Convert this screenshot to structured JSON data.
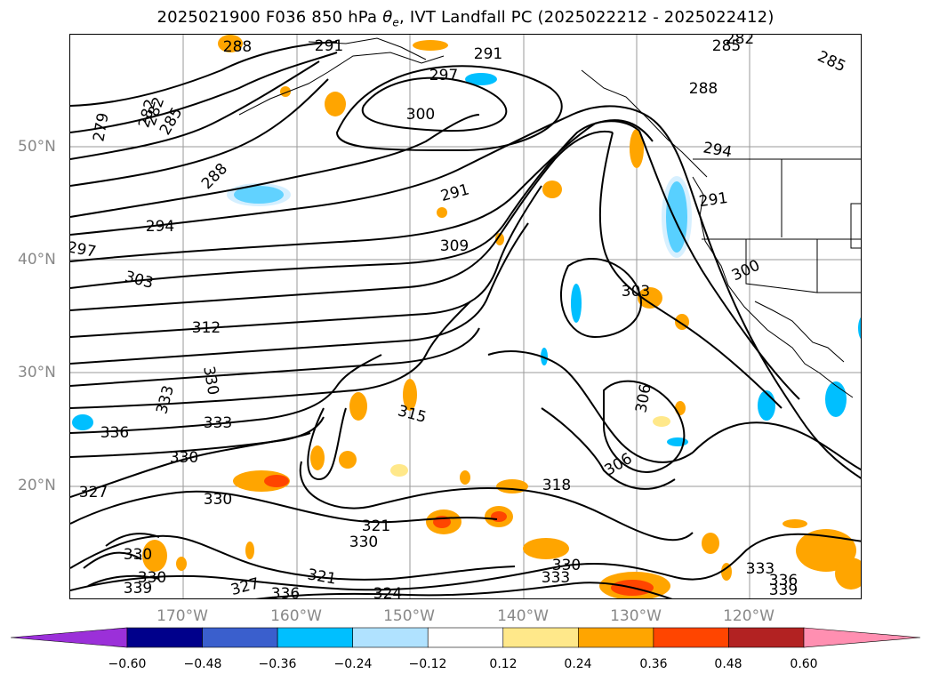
{
  "title": {
    "prefix": "2025021900 F036 850 hPa ",
    "symbol": "θ",
    "subscript": "e",
    "suffix": ", IVT Landfall PC (2025022212 - 2025022412)"
  },
  "latitude_labels": [
    "50°N",
    "40°N",
    "30°N",
    "20°N"
  ],
  "longitude_labels": [
    "170°W",
    "160°W",
    "150°W",
    "140°W",
    "130°W",
    "120°W"
  ],
  "contour_labels": [
    "288",
    "291",
    "291",
    "297",
    "300",
    "282",
    "279",
    "282",
    "285",
    "288",
    "288",
    "285",
    "294",
    "291",
    "294",
    "291",
    "297",
    "309",
    "303",
    "303",
    "300",
    "312",
    "330",
    "333",
    "336",
    "333",
    "330",
    "315",
    "306",
    "306",
    "318",
    "327",
    "330",
    "321",
    "330",
    "324",
    "321",
    "330",
    "330",
    "336",
    "339",
    "327",
    "330",
    "333",
    "333",
    "336",
    "339",
    "282",
    "285"
  ],
  "colorbar": {
    "ticks": [
      "−0.60",
      "−0.48",
      "−0.36",
      "−0.24",
      "−0.12",
      "0.12",
      "0.24",
      "0.36",
      "0.48",
      "0.60"
    ],
    "colors": [
      "#9b30d9",
      "#00008b",
      "#3a5fcd",
      "#00bfff",
      "#b0e2ff",
      "#ffffff",
      "#ffe88a",
      "#ffa500",
      "#ff4500",
      "#b22222",
      "#ff8fb1"
    ]
  },
  "map": {
    "contour_color": "#000000",
    "grid_color": "#9a9a9a",
    "coastline_color": "#000000"
  }
}
